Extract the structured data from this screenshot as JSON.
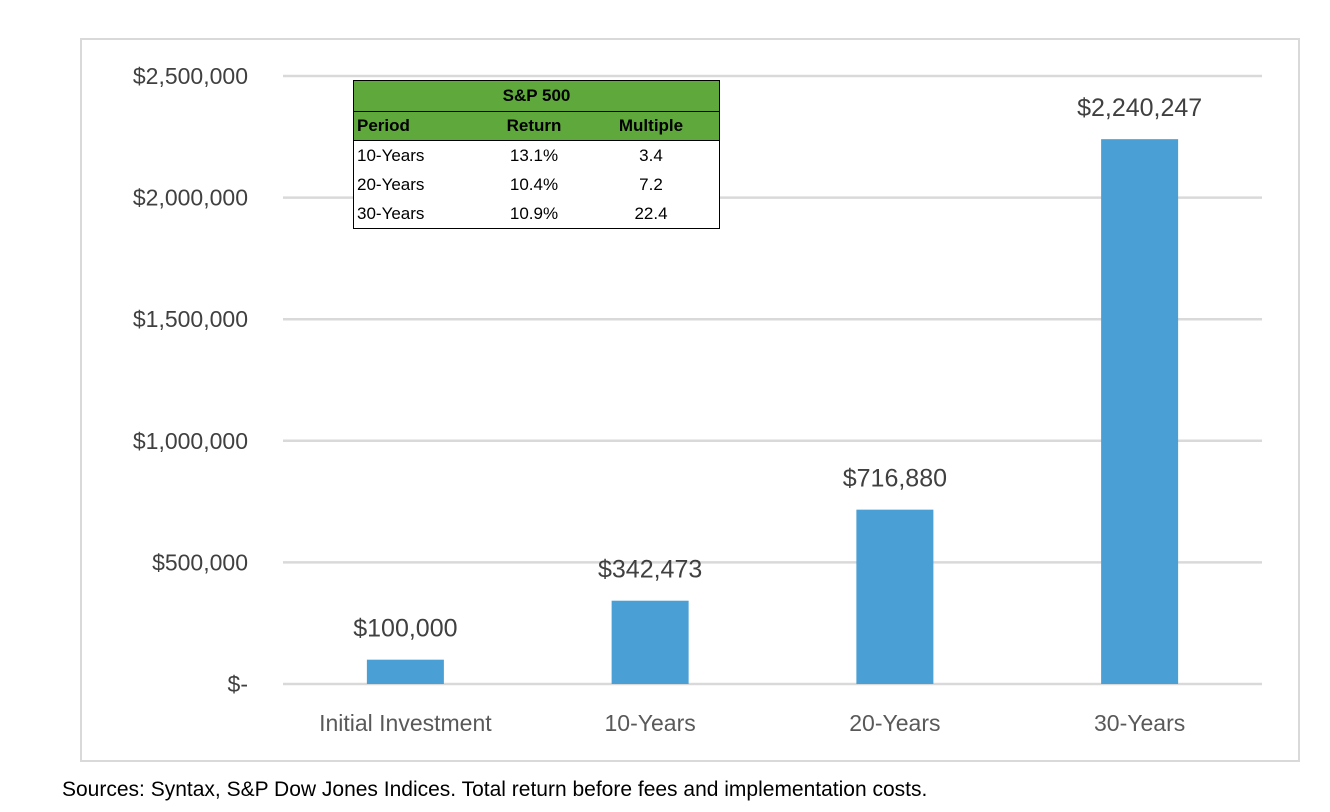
{
  "chart_data": {
    "type": "bar",
    "title": "",
    "xlabel": "",
    "ylabel": "",
    "categories": [
      "Initial Investment",
      "10-Years",
      "20-Years",
      "30-Years"
    ],
    "values": [
      100000,
      342473,
      716880,
      2240247
    ],
    "data_labels": [
      "$100,000",
      "$342,473",
      "$716,880",
      "$2,240,247"
    ],
    "ylim": [
      0,
      2500000
    ],
    "y_ticks": [
      0,
      500000,
      1000000,
      1500000,
      2000000,
      2500000
    ],
    "y_tick_labels": [
      "$-",
      "$500,000",
      "$1,000,000",
      "$1,500,000",
      "$2,000,000",
      "$2,500,000"
    ],
    "grid": true,
    "bar_color": "#4a9fd4",
    "grid_color": "#d9d9d9",
    "label_color": "#404040"
  },
  "inset_table": {
    "title": "S&P 500",
    "headers": [
      "Period",
      "Return",
      "Multiple"
    ],
    "rows": [
      [
        "10-Years",
        "13.1%",
        "3.4"
      ],
      [
        "20-Years",
        "10.4%",
        "7.2"
      ],
      [
        "30-Years",
        "10.9%",
        "22.4"
      ]
    ],
    "header_color": "#5fa83c"
  },
  "source_note": "Sources: Syntax, S&P Dow Jones Indices. Total return before fees and implementation costs."
}
